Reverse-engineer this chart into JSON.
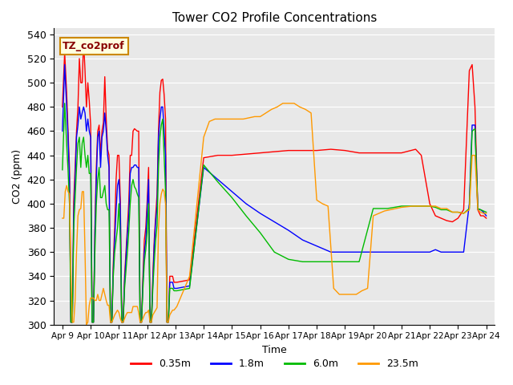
{
  "title": "Tower CO2 Profile Concentrations",
  "xlabel": "Time",
  "ylabel": "CO2 (ppm)",
  "ylim": [
    300,
    545
  ],
  "yticks": [
    300,
    320,
    340,
    360,
    380,
    400,
    420,
    440,
    460,
    480,
    500,
    520,
    540
  ],
  "annotation_text": "TZ_co2prof",
  "legend_labels": [
    "0.35m",
    "1.8m",
    "6.0m",
    "23.5m"
  ],
  "line_colors": [
    "#ff0000",
    "#0000ff",
    "#00bb00",
    "#ff9900"
  ],
  "background_color": "#e8e8e8",
  "x_tick_labels": [
    "Apr 9",
    "Apr 10",
    "Apr 11",
    "Apr 12",
    "Apr 13",
    "Apr 14",
    "Apr 15",
    "Apr 16",
    "Apr 17",
    "Apr 18",
    "Apr 19",
    "Apr 20",
    "Apr 21",
    "Apr 22",
    "Apr 23",
    "Apr 24"
  ],
  "series_red": [
    [
      0.0,
      480
    ],
    [
      0.08,
      525
    ],
    [
      0.15,
      492
    ],
    [
      0.2,
      460
    ],
    [
      0.25,
      430
    ],
    [
      0.3,
      302
    ],
    [
      0.35,
      302
    ],
    [
      0.4,
      402
    ],
    [
      0.45,
      430
    ],
    [
      0.5,
      460
    ],
    [
      0.55,
      480
    ],
    [
      0.6,
      520
    ],
    [
      0.65,
      500
    ],
    [
      0.7,
      500
    ],
    [
      0.75,
      535
    ],
    [
      0.8,
      510
    ],
    [
      0.85,
      480
    ],
    [
      0.9,
      500
    ],
    [
      0.95,
      485
    ],
    [
      1.0,
      465
    ],
    [
      1.05,
      302
    ],
    [
      1.1,
      302
    ],
    [
      1.15,
      380
    ],
    [
      1.2,
      430
    ],
    [
      1.25,
      460
    ],
    [
      1.3,
      465
    ],
    [
      1.35,
      440
    ],
    [
      1.4,
      460
    ],
    [
      1.45,
      467
    ],
    [
      1.5,
      505
    ],
    [
      1.55,
      470
    ],
    [
      1.6,
      445
    ],
    [
      1.65,
      440
    ],
    [
      1.7,
      302
    ],
    [
      1.75,
      302
    ],
    [
      1.8,
      350
    ],
    [
      1.85,
      380
    ],
    [
      1.9,
      420
    ],
    [
      1.95,
      440
    ],
    [
      2.0,
      440
    ],
    [
      2.05,
      403
    ],
    [
      2.1,
      302
    ],
    [
      2.15,
      302
    ],
    [
      2.2,
      340
    ],
    [
      2.25,
      360
    ],
    [
      2.3,
      380
    ],
    [
      2.35,
      402
    ],
    [
      2.4,
      440
    ],
    [
      2.45,
      440
    ],
    [
      2.5,
      460
    ],
    [
      2.55,
      462
    ],
    [
      2.6,
      461
    ],
    [
      2.65,
      460
    ],
    [
      2.7,
      460
    ],
    [
      2.75,
      302
    ],
    [
      2.8,
      302
    ],
    [
      2.85,
      340
    ],
    [
      2.9,
      370
    ],
    [
      2.95,
      380
    ],
    [
      3.0,
      402
    ],
    [
      3.05,
      430
    ],
    [
      3.1,
      302
    ],
    [
      3.15,
      302
    ],
    [
      3.2,
      340
    ],
    [
      3.25,
      370
    ],
    [
      3.3,
      390
    ],
    [
      3.35,
      408
    ],
    [
      3.4,
      460
    ],
    [
      3.45,
      492
    ],
    [
      3.5,
      502
    ],
    [
      3.55,
      503
    ],
    [
      3.6,
      490
    ],
    [
      3.65,
      470
    ],
    [
      3.7,
      302
    ],
    [
      3.75,
      302
    ],
    [
      3.8,
      340
    ],
    [
      3.85,
      340
    ],
    [
      3.9,
      340
    ],
    [
      3.95,
      335
    ],
    [
      4.05,
      335
    ],
    [
      4.5,
      337
    ],
    [
      5.0,
      438
    ],
    [
      5.5,
      440
    ],
    [
      6.0,
      440
    ],
    [
      6.5,
      441
    ],
    [
      7.0,
      442
    ],
    [
      7.5,
      443
    ],
    [
      8.0,
      444
    ],
    [
      8.5,
      444
    ],
    [
      9.0,
      444
    ],
    [
      9.5,
      445
    ],
    [
      10.0,
      444
    ],
    [
      10.5,
      442
    ],
    [
      11.0,
      442
    ],
    [
      11.5,
      442
    ],
    [
      12.0,
      442
    ],
    [
      12.5,
      445
    ],
    [
      12.7,
      440
    ],
    [
      13.0,
      400
    ],
    [
      13.2,
      390
    ],
    [
      13.4,
      388
    ],
    [
      13.6,
      386
    ],
    [
      13.8,
      385
    ],
    [
      14.0,
      388
    ],
    [
      14.2,
      395
    ],
    [
      14.4,
      510
    ],
    [
      14.5,
      515
    ],
    [
      14.6,
      480
    ],
    [
      14.7,
      395
    ],
    [
      14.8,
      390
    ],
    [
      14.9,
      390
    ],
    [
      15.0,
      388
    ]
  ],
  "series_blue": [
    [
      0.0,
      460
    ],
    [
      0.08,
      515
    ],
    [
      0.15,
      480
    ],
    [
      0.2,
      455
    ],
    [
      0.25,
      420
    ],
    [
      0.3,
      302
    ],
    [
      0.35,
      302
    ],
    [
      0.4,
      390
    ],
    [
      0.45,
      420
    ],
    [
      0.5,
      455
    ],
    [
      0.55,
      465
    ],
    [
      0.6,
      480
    ],
    [
      0.65,
      470
    ],
    [
      0.7,
      475
    ],
    [
      0.75,
      480
    ],
    [
      0.8,
      475
    ],
    [
      0.85,
      460
    ],
    [
      0.9,
      470
    ],
    [
      0.95,
      460
    ],
    [
      1.0,
      455
    ],
    [
      1.05,
      302
    ],
    [
      1.1,
      302
    ],
    [
      1.15,
      375
    ],
    [
      1.2,
      420
    ],
    [
      1.25,
      455
    ],
    [
      1.3,
      460
    ],
    [
      1.35,
      430
    ],
    [
      1.4,
      455
    ],
    [
      1.45,
      460
    ],
    [
      1.5,
      475
    ],
    [
      1.55,
      460
    ],
    [
      1.6,
      440
    ],
    [
      1.65,
      430
    ],
    [
      1.7,
      302
    ],
    [
      1.75,
      302
    ],
    [
      1.8,
      345
    ],
    [
      1.85,
      370
    ],
    [
      1.9,
      395
    ],
    [
      1.95,
      415
    ],
    [
      2.0,
      420
    ],
    [
      2.05,
      395
    ],
    [
      2.1,
      302
    ],
    [
      2.15,
      302
    ],
    [
      2.2,
      335
    ],
    [
      2.25,
      355
    ],
    [
      2.3,
      375
    ],
    [
      2.35,
      390
    ],
    [
      2.4,
      425
    ],
    [
      2.45,
      430
    ],
    [
      2.5,
      430
    ],
    [
      2.55,
      432
    ],
    [
      2.6,
      432
    ],
    [
      2.65,
      430
    ],
    [
      2.7,
      430
    ],
    [
      2.75,
      302
    ],
    [
      2.8,
      302
    ],
    [
      2.85,
      335
    ],
    [
      2.9,
      360
    ],
    [
      2.95,
      370
    ],
    [
      3.0,
      395
    ],
    [
      3.05,
      420
    ],
    [
      3.1,
      302
    ],
    [
      3.15,
      302
    ],
    [
      3.2,
      335
    ],
    [
      3.25,
      365
    ],
    [
      3.3,
      385
    ],
    [
      3.35,
      398
    ],
    [
      3.4,
      455
    ],
    [
      3.45,
      470
    ],
    [
      3.5,
      480
    ],
    [
      3.55,
      480
    ],
    [
      3.6,
      460
    ],
    [
      3.65,
      440
    ],
    [
      3.7,
      302
    ],
    [
      3.75,
      302
    ],
    [
      3.8,
      335
    ],
    [
      3.85,
      335
    ],
    [
      3.9,
      335
    ],
    [
      3.95,
      330
    ],
    [
      4.05,
      330
    ],
    [
      4.5,
      332
    ],
    [
      5.0,
      430
    ],
    [
      5.5,
      420
    ],
    [
      6.0,
      410
    ],
    [
      6.5,
      400
    ],
    [
      7.0,
      392
    ],
    [
      7.5,
      385
    ],
    [
      8.0,
      378
    ],
    [
      8.5,
      370
    ],
    [
      9.0,
      365
    ],
    [
      9.5,
      360
    ],
    [
      10.0,
      360
    ],
    [
      10.5,
      360
    ],
    [
      11.0,
      360
    ],
    [
      11.5,
      360
    ],
    [
      12.0,
      360
    ],
    [
      12.5,
      360
    ],
    [
      12.7,
      360
    ],
    [
      13.0,
      360
    ],
    [
      13.2,
      362
    ],
    [
      13.4,
      360
    ],
    [
      13.6,
      360
    ],
    [
      13.8,
      360
    ],
    [
      14.0,
      360
    ],
    [
      14.2,
      360
    ],
    [
      14.4,
      400
    ],
    [
      14.5,
      465
    ],
    [
      14.6,
      465
    ],
    [
      14.7,
      395
    ],
    [
      14.8,
      395
    ],
    [
      14.9,
      393
    ],
    [
      15.0,
      390
    ]
  ],
  "series_green": [
    [
      0.0,
      428
    ],
    [
      0.08,
      483
    ],
    [
      0.15,
      450
    ],
    [
      0.2,
      428
    ],
    [
      0.25,
      400
    ],
    [
      0.3,
      302
    ],
    [
      0.35,
      302
    ],
    [
      0.4,
      380
    ],
    [
      0.45,
      405
    ],
    [
      0.5,
      430
    ],
    [
      0.55,
      450
    ],
    [
      0.6,
      455
    ],
    [
      0.65,
      430
    ],
    [
      0.7,
      450
    ],
    [
      0.75,
      455
    ],
    [
      0.8,
      440
    ],
    [
      0.85,
      430
    ],
    [
      0.9,
      440
    ],
    [
      0.95,
      425
    ],
    [
      1.0,
      425
    ],
    [
      1.05,
      302
    ],
    [
      1.1,
      302
    ],
    [
      1.15,
      360
    ],
    [
      1.2,
      400
    ],
    [
      1.25,
      420
    ],
    [
      1.3,
      430
    ],
    [
      1.35,
      405
    ],
    [
      1.4,
      405
    ],
    [
      1.45,
      410
    ],
    [
      1.5,
      415
    ],
    [
      1.55,
      400
    ],
    [
      1.6,
      395
    ],
    [
      1.65,
      395
    ],
    [
      1.7,
      302
    ],
    [
      1.75,
      302
    ],
    [
      1.8,
      340
    ],
    [
      1.85,
      360
    ],
    [
      1.9,
      370
    ],
    [
      1.95,
      380
    ],
    [
      2.0,
      400
    ],
    [
      2.05,
      370
    ],
    [
      2.1,
      302
    ],
    [
      2.15,
      302
    ],
    [
      2.2,
      330
    ],
    [
      2.25,
      345
    ],
    [
      2.3,
      360
    ],
    [
      2.35,
      378
    ],
    [
      2.4,
      400
    ],
    [
      2.45,
      415
    ],
    [
      2.5,
      420
    ],
    [
      2.55,
      414
    ],
    [
      2.6,
      412
    ],
    [
      2.65,
      408
    ],
    [
      2.7,
      405
    ],
    [
      2.75,
      302
    ],
    [
      2.8,
      302
    ],
    [
      2.85,
      330
    ],
    [
      2.9,
      352
    ],
    [
      2.95,
      362
    ],
    [
      3.0,
      376
    ],
    [
      3.05,
      400
    ],
    [
      3.1,
      302
    ],
    [
      3.15,
      302
    ],
    [
      3.2,
      330
    ],
    [
      3.25,
      352
    ],
    [
      3.3,
      370
    ],
    [
      3.35,
      382
    ],
    [
      3.4,
      430
    ],
    [
      3.45,
      455
    ],
    [
      3.5,
      465
    ],
    [
      3.55,
      470
    ],
    [
      3.6,
      440
    ],
    [
      3.65,
      410
    ],
    [
      3.7,
      302
    ],
    [
      3.75,
      302
    ],
    [
      3.8,
      330
    ],
    [
      3.85,
      330
    ],
    [
      3.9,
      330
    ],
    [
      3.95,
      328
    ],
    [
      4.05,
      328
    ],
    [
      4.5,
      330
    ],
    [
      5.0,
      432
    ],
    [
      5.5,
      418
    ],
    [
      6.0,
      405
    ],
    [
      6.5,
      390
    ],
    [
      7.0,
      376
    ],
    [
      7.5,
      360
    ],
    [
      8.0,
      354
    ],
    [
      8.5,
      352
    ],
    [
      9.0,
      352
    ],
    [
      9.5,
      352
    ],
    [
      10.0,
      352
    ],
    [
      10.5,
      352
    ],
    [
      11.0,
      396
    ],
    [
      11.5,
      396
    ],
    [
      12.0,
      398
    ],
    [
      12.5,
      398
    ],
    [
      12.7,
      398
    ],
    [
      13.0,
      398
    ],
    [
      13.2,
      397
    ],
    [
      13.4,
      395
    ],
    [
      13.6,
      395
    ],
    [
      13.8,
      393
    ],
    [
      14.0,
      393
    ],
    [
      14.2,
      392
    ],
    [
      14.4,
      396
    ],
    [
      14.5,
      460
    ],
    [
      14.6,
      462
    ],
    [
      14.7,
      396
    ],
    [
      14.8,
      395
    ],
    [
      14.9,
      394
    ],
    [
      15.0,
      393
    ]
  ],
  "series_orange": [
    [
      0.0,
      388
    ],
    [
      0.05,
      388
    ],
    [
      0.1,
      410
    ],
    [
      0.15,
      415
    ],
    [
      0.2,
      410
    ],
    [
      0.25,
      408
    ],
    [
      0.3,
      344
    ],
    [
      0.35,
      302
    ],
    [
      0.4,
      302
    ],
    [
      0.45,
      320
    ],
    [
      0.5,
      360
    ],
    [
      0.55,
      390
    ],
    [
      0.6,
      395
    ],
    [
      0.65,
      396
    ],
    [
      0.7,
      410
    ],
    [
      0.75,
      410
    ],
    [
      0.8,
      360
    ],
    [
      0.85,
      300
    ],
    [
      0.9,
      302
    ],
    [
      0.95,
      316
    ],
    [
      1.0,
      322
    ],
    [
      1.05,
      322
    ],
    [
      1.1,
      322
    ],
    [
      1.15,
      320
    ],
    [
      1.2,
      320
    ],
    [
      1.25,
      325
    ],
    [
      1.3,
      320
    ],
    [
      1.35,
      320
    ],
    [
      1.4,
      325
    ],
    [
      1.45,
      330
    ],
    [
      1.5,
      325
    ],
    [
      1.55,
      320
    ],
    [
      1.6,
      316
    ],
    [
      1.65,
      316
    ],
    [
      1.7,
      302
    ],
    [
      1.75,
      302
    ],
    [
      1.8,
      305
    ],
    [
      1.85,
      308
    ],
    [
      1.9,
      310
    ],
    [
      1.95,
      312
    ],
    [
      2.0,
      310
    ],
    [
      2.05,
      305
    ],
    [
      2.1,
      302
    ],
    [
      2.15,
      302
    ],
    [
      2.2,
      305
    ],
    [
      2.25,
      308
    ],
    [
      2.3,
      310
    ],
    [
      2.35,
      310
    ],
    [
      2.4,
      310
    ],
    [
      2.45,
      310
    ],
    [
      2.5,
      315
    ],
    [
      2.55,
      315
    ],
    [
      2.6,
      315
    ],
    [
      2.65,
      315
    ],
    [
      2.7,
      310
    ],
    [
      2.75,
      302
    ],
    [
      2.8,
      302
    ],
    [
      2.85,
      305
    ],
    [
      2.9,
      308
    ],
    [
      2.95,
      310
    ],
    [
      3.0,
      310
    ],
    [
      3.05,
      312
    ],
    [
      3.1,
      302
    ],
    [
      3.15,
      302
    ],
    [
      3.2,
      308
    ],
    [
      3.25,
      310
    ],
    [
      3.3,
      312
    ],
    [
      3.35,
      314
    ],
    [
      3.4,
      380
    ],
    [
      3.45,
      400
    ],
    [
      3.5,
      408
    ],
    [
      3.55,
      412
    ],
    [
      3.6,
      410
    ],
    [
      3.65,
      400
    ],
    [
      3.7,
      302
    ],
    [
      3.75,
      302
    ],
    [
      3.8,
      308
    ],
    [
      3.85,
      310
    ],
    [
      3.9,
      312
    ],
    [
      3.95,
      312
    ],
    [
      4.05,
      315
    ],
    [
      4.5,
      340
    ],
    [
      5.0,
      455
    ],
    [
      5.2,
      468
    ],
    [
      5.4,
      470
    ],
    [
      5.6,
      470
    ],
    [
      6.0,
      470
    ],
    [
      6.4,
      470
    ],
    [
      6.8,
      472
    ],
    [
      7.0,
      472
    ],
    [
      7.2,
      475
    ],
    [
      7.4,
      478
    ],
    [
      7.6,
      480
    ],
    [
      7.8,
      483
    ],
    [
      8.0,
      483
    ],
    [
      8.2,
      483
    ],
    [
      8.4,
      480
    ],
    [
      8.6,
      478
    ],
    [
      8.8,
      475
    ],
    [
      9.0,
      403
    ],
    [
      9.2,
      400
    ],
    [
      9.4,
      398
    ],
    [
      9.6,
      330
    ],
    [
      9.8,
      325
    ],
    [
      10.0,
      325
    ],
    [
      10.2,
      325
    ],
    [
      10.4,
      325
    ],
    [
      10.6,
      328
    ],
    [
      10.8,
      330
    ],
    [
      11.0,
      390
    ],
    [
      11.2,
      392
    ],
    [
      11.4,
      394
    ],
    [
      11.6,
      395
    ],
    [
      12.0,
      397
    ],
    [
      12.4,
      398
    ],
    [
      12.7,
      398
    ],
    [
      13.0,
      398
    ],
    [
      13.2,
      398
    ],
    [
      13.4,
      396
    ],
    [
      13.6,
      396
    ],
    [
      13.8,
      393
    ],
    [
      14.0,
      393
    ],
    [
      14.2,
      392
    ],
    [
      14.4,
      395
    ],
    [
      14.5,
      440
    ],
    [
      14.6,
      440
    ],
    [
      14.7,
      395
    ],
    [
      14.8,
      393
    ],
    [
      14.9,
      392
    ],
    [
      15.0,
      392
    ]
  ]
}
